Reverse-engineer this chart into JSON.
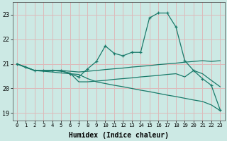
{
  "xlabel": "Humidex (Indice chaleur)",
  "xlim": [
    -0.5,
    23.5
  ],
  "ylim": [
    18.7,
    23.5
  ],
  "yticks": [
    19,
    20,
    21,
    22,
    23
  ],
  "xticks": [
    0,
    1,
    2,
    3,
    4,
    5,
    6,
    7,
    8,
    9,
    10,
    11,
    12,
    13,
    14,
    15,
    16,
    17,
    18,
    19,
    20,
    21,
    22,
    23
  ],
  "bg_color": "#cce9e4",
  "grid_color": "#ddbaba",
  "line_color": "#1a7a6a",
  "line1_x": [
    0,
    1,
    2,
    3,
    4,
    5,
    6,
    7,
    8,
    9,
    10,
    11,
    12,
    13,
    14,
    15,
    16,
    17,
    18,
    19,
    20,
    21,
    22,
    23
  ],
  "line1_y": [
    21.0,
    20.87,
    20.73,
    20.73,
    20.73,
    20.73,
    20.6,
    20.47,
    20.8,
    21.1,
    21.73,
    21.43,
    21.33,
    21.47,
    21.47,
    22.87,
    23.07,
    23.07,
    22.5,
    21.13,
    20.73,
    20.4,
    20.13,
    19.13
  ],
  "line2_x": [
    0,
    1,
    2,
    3,
    4,
    5,
    6,
    7,
    8,
    9,
    10,
    11,
    12,
    13,
    14,
    15,
    16,
    17,
    18,
    19,
    20,
    21,
    22,
    23
  ],
  "line2_y": [
    21.0,
    20.87,
    20.73,
    20.73,
    20.73,
    20.73,
    20.7,
    20.67,
    20.7,
    20.73,
    20.77,
    20.8,
    20.83,
    20.87,
    20.9,
    20.93,
    20.97,
    21.0,
    21.03,
    21.07,
    21.1,
    21.13,
    21.1,
    21.13
  ],
  "line3_x": [
    0,
    1,
    2,
    3,
    4,
    5,
    6,
    7,
    8,
    9,
    10,
    11,
    12,
    13,
    14,
    15,
    16,
    17,
    18,
    19,
    20,
    21,
    22,
    23
  ],
  "line3_y": [
    21.0,
    20.87,
    20.73,
    20.73,
    20.73,
    20.7,
    20.63,
    20.27,
    20.27,
    20.3,
    20.33,
    20.37,
    20.4,
    20.43,
    20.47,
    20.5,
    20.53,
    20.57,
    20.6,
    20.47,
    20.73,
    20.6,
    20.33,
    20.07
  ],
  "line4_x": [
    0,
    1,
    2,
    3,
    4,
    5,
    6,
    7,
    8,
    9,
    10,
    11,
    12,
    13,
    14,
    15,
    16,
    17,
    18,
    19,
    20,
    21,
    22,
    23
  ],
  "line4_y": [
    21.0,
    20.85,
    20.73,
    20.7,
    20.67,
    20.63,
    20.6,
    20.57,
    20.4,
    20.27,
    20.2,
    20.13,
    20.07,
    20.0,
    19.93,
    19.87,
    19.8,
    19.73,
    19.67,
    19.6,
    19.53,
    19.47,
    19.33,
    19.1
  ]
}
